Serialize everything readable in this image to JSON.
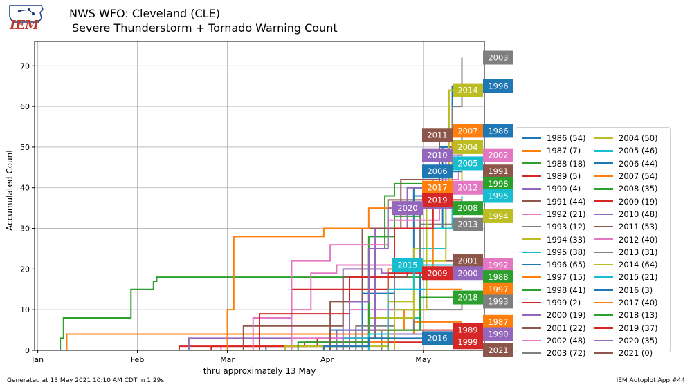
{
  "header": {
    "title": "NWS WFO: Cleveland (CLE)",
    "subtitle": "Severe Thunderstorm + Tornado Warning Count",
    "logo_text": "IEM"
  },
  "footer": {
    "generated": "Generated at 13 May 2021 10:10 AM CDT in 1.29s",
    "app": "IEM Autoplot App #44"
  },
  "chart_data": {
    "type": "line",
    "title": "NWS WFO: Cleveland (CLE) Severe Thunderstorm + Tornado Warning Count",
    "xlabel": "thru approximately 13 May",
    "ylabel": "Accumulated Count",
    "x_unit": "day of year",
    "xlim": [
      0,
      140
    ],
    "ylim": [
      0,
      76
    ],
    "xticks": [
      {
        "label": "Jan",
        "day": 1
      },
      {
        "label": "Feb",
        "day": 32
      },
      {
        "label": "Mar",
        "day": 60
      },
      {
        "label": "Apr",
        "day": 91
      },
      {
        "label": "May",
        "day": 121
      }
    ],
    "yticks": [
      0,
      10,
      20,
      30,
      40,
      50,
      60,
      70
    ],
    "grid": true,
    "legend_position": "right",
    "series": [
      {
        "year": "1986",
        "total": 54,
        "color": "#1f77b4",
        "pts": [
          [
            72,
            1
          ],
          [
            100,
            5
          ],
          [
            112,
            20
          ],
          [
            118,
            38
          ],
          [
            126,
            50
          ],
          [
            133,
            54
          ]
        ]
      },
      {
        "year": "1987",
        "total": 7,
        "color": "#ff7f0e",
        "pts": [
          [
            10,
            4
          ],
          [
            38,
            4
          ],
          [
            118,
            7
          ]
        ]
      },
      {
        "year": "1988",
        "total": 18,
        "color": "#2ca02c",
        "pts": [
          [
            8,
            3
          ],
          [
            9,
            8
          ],
          [
            29,
            8
          ],
          [
            30,
            15
          ],
          [
            37,
            17
          ],
          [
            38,
            18
          ]
        ]
      },
      {
        "year": "1989",
        "total": 5,
        "color": "#d62728",
        "pts": [
          [
            45,
            1
          ],
          [
            88,
            3
          ],
          [
            104,
            5
          ]
        ]
      },
      {
        "year": "1990",
        "total": 4,
        "color": "#9467bd",
        "pts": [
          [
            48,
            3
          ],
          [
            110,
            4
          ]
        ]
      },
      {
        "year": "1991",
        "total": 44,
        "color": "#8c564b",
        "pts": [
          [
            104,
            3
          ],
          [
            106,
            25
          ],
          [
            110,
            37
          ],
          [
            124,
            41
          ],
          [
            133,
            44
          ]
        ]
      },
      {
        "year": "1992",
        "total": 21,
        "color": "#e377c2",
        "pts": [
          [
            58,
            1
          ],
          [
            80,
            10
          ],
          [
            86,
            19
          ],
          [
            94,
            21
          ]
        ]
      },
      {
        "year": "1993",
        "total": 12,
        "color": "#7f7f7f",
        "pts": [
          [
            108,
            5
          ],
          [
            118,
            10
          ],
          [
            133,
            12
          ]
        ]
      },
      {
        "year": "1994",
        "total": 33,
        "color": "#bcbd22",
        "pts": [
          [
            90,
            1
          ],
          [
            110,
            12
          ],
          [
            118,
            25
          ],
          [
            124,
            30
          ],
          [
            133,
            33
          ]
        ]
      },
      {
        "year": "1995",
        "total": 38,
        "color": "#17becf",
        "pts": [
          [
            112,
            8
          ],
          [
            120,
            25
          ],
          [
            128,
            35
          ],
          [
            133,
            38
          ]
        ]
      },
      {
        "year": "1996",
        "total": 65,
        "color": "#1f77b4",
        "pts": [
          [
            110,
            10
          ],
          [
            120,
            30
          ],
          [
            127,
            50
          ],
          [
            130,
            65
          ]
        ]
      },
      {
        "year": "1997",
        "total": 15,
        "color": "#ff7f0e",
        "pts": [
          [
            55,
            1
          ],
          [
            98,
            5
          ],
          [
            115,
            10
          ],
          [
            122,
            15
          ]
        ]
      },
      {
        "year": "1998",
        "total": 41,
        "color": "#2ca02c",
        "pts": [
          [
            92,
            1
          ],
          [
            104,
            25
          ],
          [
            109,
            38
          ],
          [
            112,
            41
          ]
        ]
      },
      {
        "year": "1999",
        "total": 2,
        "color": "#d62728",
        "pts": [
          [
            55,
            1
          ],
          [
            84,
            2
          ]
        ]
      },
      {
        "year": "2000",
        "total": 19,
        "color": "#9467bd",
        "pts": [
          [
            94,
            5
          ],
          [
            96,
            20
          ],
          [
            108,
            19
          ]
        ]
      },
      {
        "year": "2001",
        "total": 22,
        "color": "#8c564b",
        "pts": [
          [
            65,
            6
          ],
          [
            96,
            18
          ],
          [
            116,
            22
          ]
        ]
      },
      {
        "year": "2002",
        "total": 48,
        "color": "#e377c2",
        "pts": [
          [
            80,
            3
          ],
          [
            98,
            10
          ],
          [
            112,
            30
          ],
          [
            124,
            42
          ],
          [
            132,
            48
          ]
        ]
      },
      {
        "year": "2003",
        "total": 72,
        "color": "#7f7f7f",
        "pts": [
          [
            102,
            5
          ],
          [
            110,
            20
          ],
          [
            120,
            35
          ],
          [
            130,
            60
          ],
          [
            133,
            72
          ]
        ]
      },
      {
        "year": "2004",
        "total": 50,
        "color": "#bcbd22",
        "pts": [
          [
            78,
            1
          ],
          [
            104,
            8
          ],
          [
            118,
            22
          ],
          [
            128,
            40
          ],
          [
            133,
            50
          ]
        ]
      },
      {
        "year": "2005",
        "total": 46,
        "color": "#17becf",
        "pts": [
          [
            96,
            3
          ],
          [
            112,
            15
          ],
          [
            122,
            30
          ],
          [
            130,
            46
          ]
        ]
      },
      {
        "year": "2006",
        "total": 44,
        "color": "#1f77b4",
        "pts": [
          [
            92,
            5
          ],
          [
            102,
            14
          ],
          [
            112,
            35
          ],
          [
            118,
            40
          ],
          [
            126,
            44
          ]
        ]
      },
      {
        "year": "2007",
        "total": 54,
        "color": "#ff7f0e",
        "pts": [
          [
            96,
            2
          ],
          [
            110,
            20
          ],
          [
            124,
            40
          ],
          [
            130,
            54
          ]
        ]
      },
      {
        "year": "2008",
        "total": 35,
        "color": "#2ca02c",
        "pts": [
          [
            82,
            2
          ],
          [
            104,
            28
          ],
          [
            112,
            33
          ],
          [
            120,
            35
          ]
        ]
      },
      {
        "year": "2009",
        "total": 19,
        "color": "#d62728",
        "pts": [
          [
            70,
            8
          ],
          [
            80,
            15
          ],
          [
            110,
            19
          ]
        ]
      },
      {
        "year": "2010",
        "total": 48,
        "color": "#9467bd",
        "pts": [
          [
            96,
            5
          ],
          [
            106,
            30
          ],
          [
            116,
            40
          ],
          [
            128,
            48
          ]
        ]
      },
      {
        "year": "2011",
        "total": 53,
        "color": "#8c564b",
        "pts": [
          [
            92,
            12
          ],
          [
            102,
            30
          ],
          [
            114,
            42
          ],
          [
            126,
            53
          ]
        ]
      },
      {
        "year": "2012",
        "total": 40,
        "color": "#e377c2",
        "pts": [
          [
            68,
            8
          ],
          [
            80,
            22
          ],
          [
            92,
            26
          ],
          [
            110,
            32
          ],
          [
            126,
            40
          ]
        ]
      },
      {
        "year": "2013",
        "total": 31,
        "color": "#7f7f7f",
        "pts": [
          [
            100,
            6
          ],
          [
            112,
            22
          ],
          [
            120,
            31
          ]
        ]
      },
      {
        "year": "2014",
        "total": 64,
        "color": "#bcbd22",
        "pts": [
          [
            112,
            10
          ],
          [
            122,
            40
          ],
          [
            129,
            64
          ]
        ]
      },
      {
        "year": "2015",
        "total": 21,
        "color": "#17becf",
        "pts": [
          [
            104,
            4
          ],
          [
            110,
            15
          ],
          [
            118,
            21
          ]
        ]
      },
      {
        "year": "2016",
        "total": 3,
        "color": "#1f77b4",
        "pts": [
          [
            90,
            1
          ],
          [
            104,
            3
          ]
        ]
      },
      {
        "year": "2017",
        "total": 40,
        "color": "#ff7f0e",
        "pts": [
          [
            60,
            10
          ],
          [
            62,
            28
          ],
          [
            90,
            30
          ],
          [
            104,
            35
          ],
          [
            124,
            40
          ]
        ]
      },
      {
        "year": "2018",
        "total": 13,
        "color": "#2ca02c",
        "pts": [
          [
            110,
            5
          ],
          [
            120,
            13
          ]
        ]
      },
      {
        "year": "2019",
        "total": 37,
        "color": "#d62728",
        "pts": [
          [
            70,
            9
          ],
          [
            98,
            18
          ],
          [
            112,
            30
          ],
          [
            124,
            37
          ]
        ]
      },
      {
        "year": "2020",
        "total": 35,
        "color": "#9467bd",
        "pts": [
          [
            98,
            12
          ],
          [
            104,
            25
          ],
          [
            110,
            35
          ]
        ]
      },
      {
        "year": "2021",
        "total": 0,
        "color": "#8c564b",
        "pts": []
      }
    ],
    "end_labels": [
      {
        "year": "2003",
        "value": 72,
        "color": "#7f7f7f",
        "col": "right"
      },
      {
        "year": "2014",
        "value": 64,
        "color": "#bcbd22",
        "col": "left"
      },
      {
        "year": "1996",
        "value": 65,
        "color": "#1f77b4",
        "col": "right"
      },
      {
        "year": "2011",
        "value": 53,
        "color": "#8c564b",
        "col": "leftfar"
      },
      {
        "year": "2007",
        "value": 54,
        "color": "#ff7f0e",
        "col": "left"
      },
      {
        "year": "1986",
        "value": 54,
        "color": "#1f77b4",
        "col": "right"
      },
      {
        "year": "2004",
        "value": 50,
        "color": "#bcbd22",
        "col": "left"
      },
      {
        "year": "2010",
        "value": 48,
        "color": "#9467bd",
        "col": "leftfar"
      },
      {
        "year": "2002",
        "value": 48,
        "color": "#e377c2",
        "col": "right"
      },
      {
        "year": "2005",
        "value": 46,
        "color": "#17becf",
        "col": "left"
      },
      {
        "year": "2006",
        "value": 44,
        "color": "#1f77b4",
        "col": "leftfar"
      },
      {
        "year": "1991",
        "value": 44,
        "color": "#8c564b",
        "col": "right"
      },
      {
        "year": "1998",
        "value": 41,
        "color": "#2ca02c",
        "col": "right"
      },
      {
        "year": "2017",
        "value": 40,
        "color": "#ff7f0e",
        "col": "leftfar"
      },
      {
        "year": "2012",
        "value": 40,
        "color": "#e377c2",
        "col": "left"
      },
      {
        "year": "1995",
        "value": 38,
        "color": "#17becf",
        "col": "right"
      },
      {
        "year": "2019",
        "value": 37,
        "color": "#d62728",
        "col": "leftfar"
      },
      {
        "year": "2008",
        "value": 35,
        "color": "#2ca02c",
        "col": "left"
      },
      {
        "year": "2020",
        "value": 35,
        "color": "#9467bd",
        "col": "far"
      },
      {
        "year": "1994",
        "value": 33,
        "color": "#bcbd22",
        "col": "right"
      },
      {
        "year": "2013",
        "value": 31,
        "color": "#7f7f7f",
        "col": "left"
      },
      {
        "year": "2001",
        "value": 22,
        "color": "#8c564b",
        "col": "left"
      },
      {
        "year": "1992",
        "value": 21,
        "color": "#e377c2",
        "col": "right"
      },
      {
        "year": "2015",
        "value": 21,
        "color": "#17becf",
        "col": "far"
      },
      {
        "year": "2000",
        "value": 19,
        "color": "#9467bd",
        "col": "left"
      },
      {
        "year": "2009",
        "value": 19,
        "color": "#d62728",
        "col": "leftfar"
      },
      {
        "year": "1988",
        "value": 18,
        "color": "#2ca02c",
        "col": "right"
      },
      {
        "year": "1997",
        "value": 15,
        "color": "#ff7f0e",
        "col": "right"
      },
      {
        "year": "2018",
        "value": 13,
        "color": "#2ca02c",
        "col": "left"
      },
      {
        "year": "1993",
        "value": 12,
        "color": "#7f7f7f",
        "col": "right"
      },
      {
        "year": "1987",
        "value": 7,
        "color": "#ff7f0e",
        "col": "right"
      },
      {
        "year": "1989",
        "value": 5,
        "color": "#d62728",
        "col": "left"
      },
      {
        "year": "1990",
        "value": 4,
        "color": "#9467bd",
        "col": "right"
      },
      {
        "year": "2016",
        "value": 3,
        "color": "#1f77b4",
        "col": "leftfar"
      },
      {
        "year": "1999",
        "value": 2,
        "color": "#d62728",
        "col": "left"
      },
      {
        "year": "2021",
        "value": 0,
        "color": "#8c564b",
        "col": "right"
      }
    ]
  }
}
